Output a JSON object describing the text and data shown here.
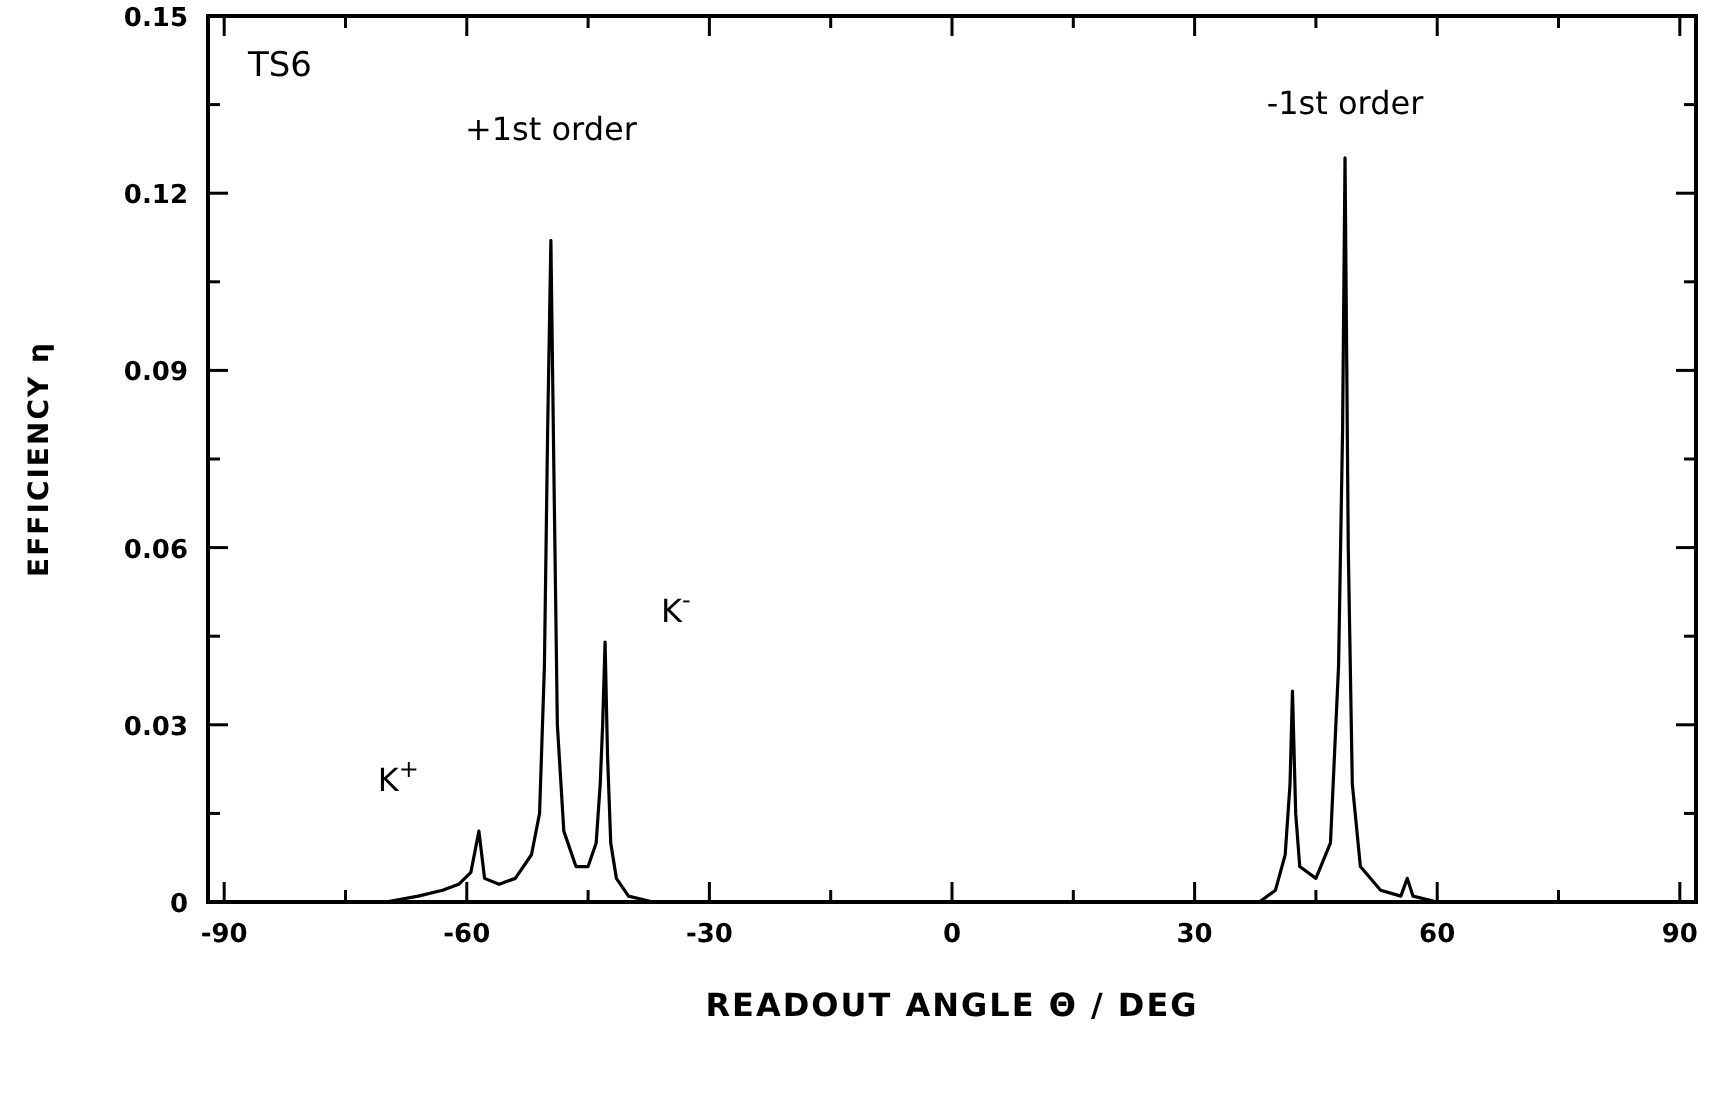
{
  "chart_data": {
    "type": "line",
    "xlabel": "READOUT ANGLE Θ / DEG",
    "ylabel": "EFFICIENCY η",
    "xlim": [
      -92,
      92
    ],
    "ylim": [
      0,
      0.15
    ],
    "xticks": [
      -90,
      {
        "value": -75,
        "label": null
      },
      -60,
      {
        "value": -45,
        "label": null
      },
      -30,
      {
        "value": -15,
        "label": null
      },
      0,
      {
        "value": 15,
        "label": null
      },
      30,
      {
        "value": 45,
        "label": null
      },
      60,
      {
        "value": 75,
        "label": null
      },
      90
    ],
    "yticks": [
      0,
      {
        "value": 0.015,
        "label": null
      },
      0.03,
      {
        "value": 0.045,
        "label": null
      },
      0.06,
      {
        "value": 0.075,
        "label": null
      },
      0.09,
      {
        "value": 0.105,
        "label": null
      },
      0.12,
      {
        "value": 0.135,
        "label": null
      },
      0.15
    ],
    "grid": false,
    "marker": "none",
    "line_style": "solid",
    "annotations": [
      "TS6",
      {
        "text": "+1st order",
        "x": -49.6,
        "y": 0.112
      },
      {
        "text": "-1st order",
        "x": 48.6,
        "y": 0.126
      },
      {
        "text": "K$^{+}$",
        "x": -58.5,
        "y": 0.012
      },
      {
        "text": "K$^{-}$",
        "x": -42.9,
        "y": 0.044
      }
    ],
    "series": [
      {
        "color": "#000000",
        "x": [
          -90,
          -70,
          -66,
          -63,
          -61,
          -59.5,
          -58.5,
          -57.8,
          -56,
          -54,
          -52,
          -51,
          -50.4,
          -50,
          -49.6,
          -49.2,
          -48.8,
          -48,
          -46.5,
          -45,
          -44,
          -43.5,
          -43.2,
          -42.9,
          -42.6,
          -42.2,
          -41.5,
          -40,
          -37,
          38,
          40,
          41.2,
          41.8,
          42.1,
          42.5,
          43,
          45,
          46.8,
          47.8,
          48.3,
          48.6,
          49,
          49.5,
          50.5,
          53,
          55.5,
          56.3,
          57,
          60,
          90
        ],
        "values": [
          0,
          0,
          0.001,
          0.002,
          0.003,
          0.005,
          0.012,
          0.004,
          0.003,
          0.004,
          0.008,
          0.015,
          0.04,
          0.08,
          0.112,
          0.07,
          0.03,
          0.012,
          0.006,
          0.006,
          0.01,
          0.02,
          0.03,
          0.044,
          0.025,
          0.01,
          0.004,
          0.001,
          0,
          0,
          0.002,
          0.008,
          0.02,
          0.0357,
          0.015,
          0.006,
          0.004,
          0.01,
          0.04,
          0.08,
          0.126,
          0.06,
          0.02,
          0.006,
          0.002,
          0.001,
          0.004,
          0.001,
          0,
          0
        ]
      }
    ]
  }
}
